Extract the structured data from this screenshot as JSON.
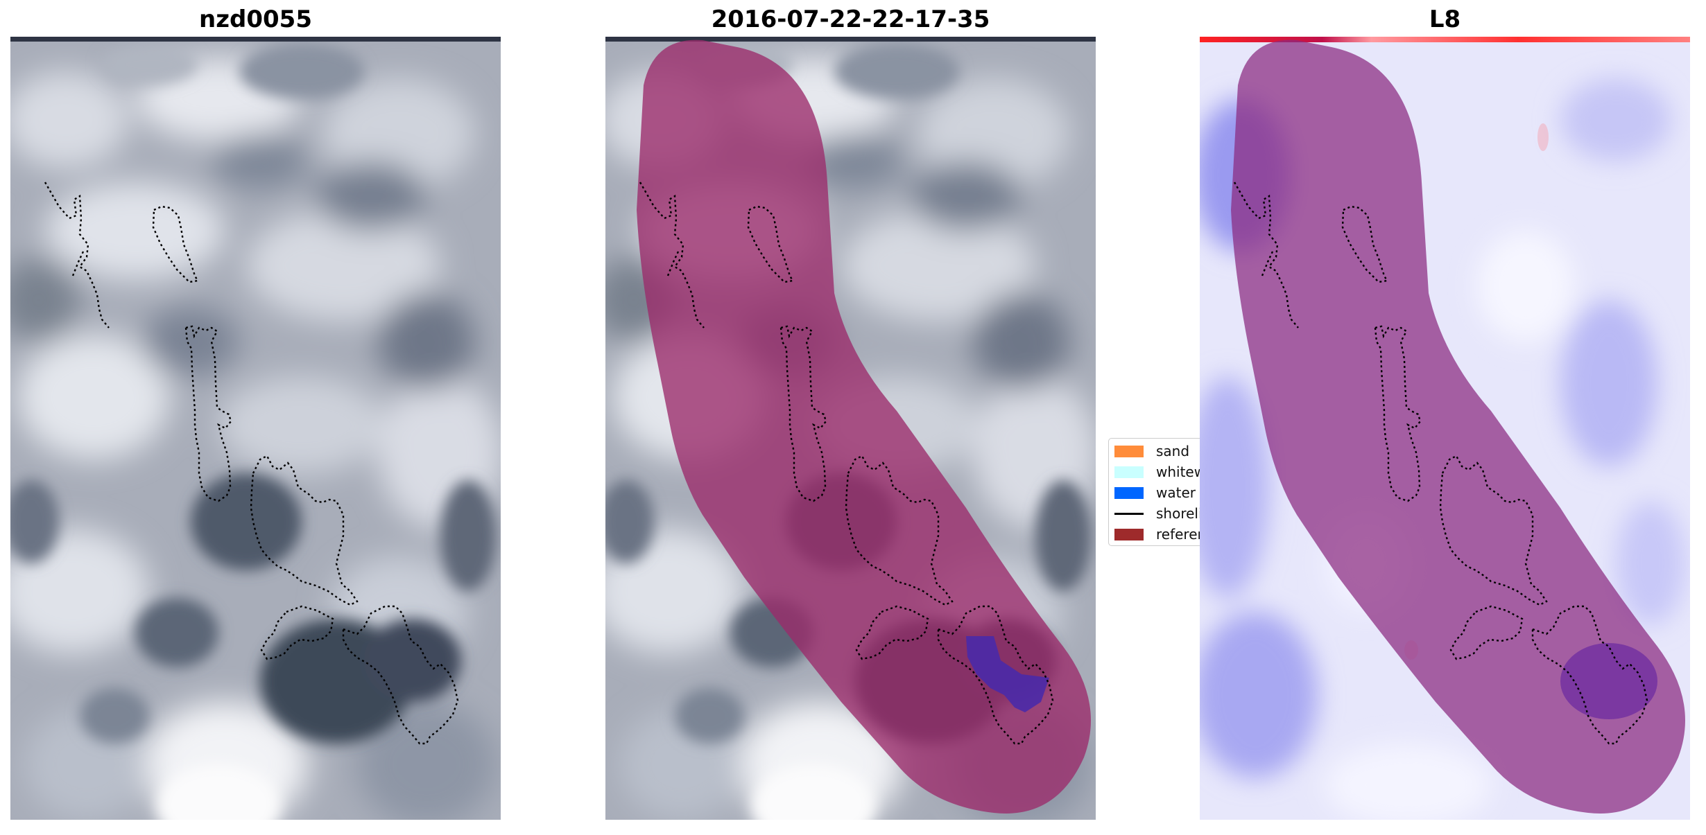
{
  "panels": [
    {
      "title": "nzd0055"
    },
    {
      "title": "2016-07-22-22-17-35"
    },
    {
      "title": "L8"
    }
  ],
  "legend": {
    "items": [
      {
        "label": "sand",
        "color": "#ff8c3a",
        "kind": "patch"
      },
      {
        "label": "whitewater",
        "color": "#c9ffff",
        "kind": "patch"
      },
      {
        "label": "water",
        "color": "#0066ff",
        "kind": "patch"
      },
      {
        "label": "shoreline",
        "color": "#000000",
        "kind": "line"
      },
      {
        "label": "reference",
        "color": "#9e2a2b",
        "kind": "patch"
      }
    ]
  },
  "colors": {
    "reference_overlay": "#9b2a6a",
    "water_detected": "#4a2aa8",
    "cloud_light": "#e2e5ec",
    "cloud_dark": "#3c4555",
    "l8_background": "#e8e8ff",
    "l8_red_stripe": "#ff2222"
  }
}
